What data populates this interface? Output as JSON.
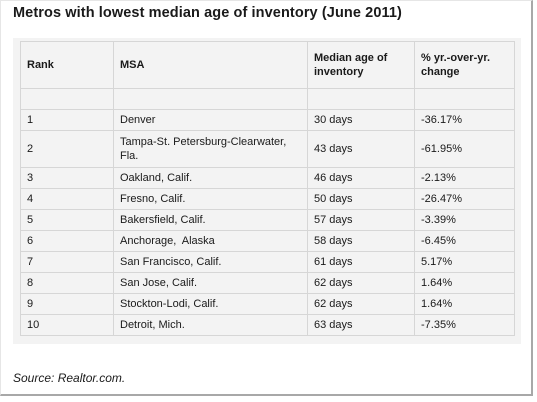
{
  "title": "Metros with lowest median age of inventory (June 2011)",
  "headers": {
    "rank": "Rank",
    "msa": "MSA",
    "median_age": "Median age of inventory",
    "change": "% yr.-over-yr. change"
  },
  "rows": [
    {
      "rank": "1",
      "msa": "Denver",
      "median_age": "30 days",
      "change": "-36.17%"
    },
    {
      "rank": "2",
      "msa": "Tampa-St. Petersburg-Clearwater, Fla.",
      "median_age": "43 days",
      "change": "-61.95%"
    },
    {
      "rank": "3",
      "msa": "Oakland, Calif.",
      "median_age": "46 days",
      "change": "-2.13%"
    },
    {
      "rank": "4",
      "msa": "Fresno, Calif.",
      "median_age": "50 days",
      "change": "-26.47%"
    },
    {
      "rank": "5",
      "msa": "Bakersfield, Calif.",
      "median_age": "57 days",
      "change": "-3.39%"
    },
    {
      "rank": "6",
      "msa": "Anchorage,  Alaska",
      "median_age": "58 days",
      "change": "-6.45%"
    },
    {
      "rank": "7",
      "msa": "San Francisco, Calif.",
      "median_age": "61 days",
      "change": "5.17%"
    },
    {
      "rank": "8",
      "msa": "San Jose, Calif.",
      "median_age": "62 days",
      "change": "1.64%"
    },
    {
      "rank": "9",
      "msa": "Stockton-Lodi, Calif.",
      "median_age": "62 days",
      "change": "1.64%"
    },
    {
      "rank": "10",
      "msa": "Detroit, Mich.",
      "median_age": "63 days",
      "change": "-7.35%"
    }
  ],
  "source": "Source: Realtor.com."
}
